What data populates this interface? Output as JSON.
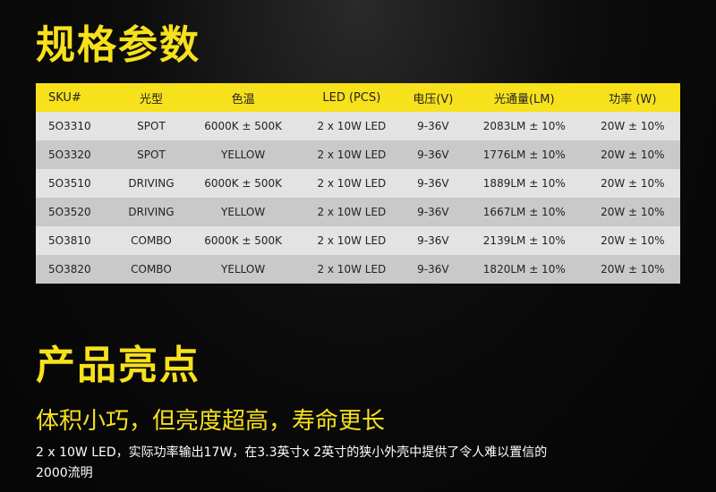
{
  "spec_title": "规格参数",
  "table": {
    "columns": [
      "SKU#",
      "光型",
      "色温",
      "LED (PCS)",
      "电压(V)",
      "光通量(LM)",
      "功率 (W)"
    ],
    "rows": [
      [
        "5O3310",
        "SPOT",
        "6000K ± 500K",
        "2 x 10W LED",
        "9-36V",
        "2083LM ± 10%",
        "20W ± 10%"
      ],
      [
        "5O3320",
        "SPOT",
        "YELLOW",
        "2 x 10W LED",
        "9-36V",
        "1776LM ± 10%",
        "20W ± 10%"
      ],
      [
        "5O3510",
        "DRIVING",
        "6000K ± 500K",
        "2 x 10W LED",
        "9-36V",
        "1889LM ± 10%",
        "20W ± 10%"
      ],
      [
        "5O3520",
        "DRIVING",
        "YELLOW",
        "2 x 10W LED",
        "9-36V",
        "1667LM ± 10%",
        "20W ± 10%"
      ],
      [
        "5O3810",
        "COMBO",
        "6000K ± 500K",
        "2 x 10W LED",
        "9-36V",
        "2139LM ± 10%",
        "20W ± 10%"
      ],
      [
        "5O3820",
        "COMBO",
        "YELLOW",
        "2 x 10W LED",
        "9-36V",
        "1820LM ± 10%",
        "20W ± 10%"
      ]
    ]
  },
  "highlights": {
    "title": "产品亮点",
    "subtitle": "体积小巧，但亮度超高，寿命更长",
    "body": "2 x 10W LED，实际功率输出17W，在3.3英寸x 2英寸的狭小外壳中提供了令人难以置信的2000流明"
  }
}
